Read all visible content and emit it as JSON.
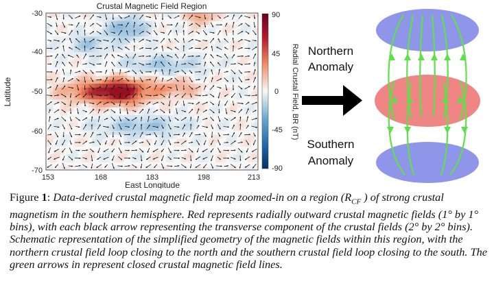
{
  "map": {
    "title": "Crustal Magnetic Field Region",
    "xlabel": "East Longitude",
    "ylabel": "Latitude",
    "xticks": [
      "153",
      "168",
      "183",
      "198",
      "213"
    ],
    "yticks": [
      "-30",
      "-40",
      "-50",
      "-60",
      "-70"
    ],
    "colorbar_label": "Radial Crustal Field, BR (nT)",
    "colorbar_ticks": [
      "90",
      "45",
      "0",
      "-45",
      "-90"
    ],
    "colormap": {
      "positive": "#a50f26",
      "zero": "#f6f6f6",
      "negative": "#2b5fa8"
    }
  },
  "schematic": {
    "northern_label_line1": "Northern",
    "northern_label_line2": "Anomaly",
    "southern_label_line1": "Southern",
    "southern_label_line2": "Anomaly",
    "colors": {
      "blue_ellipse": "#8f96ea",
      "red_ellipse": "#ef8585",
      "field_lines": "#5fe04a",
      "arrow": "#000000"
    }
  },
  "caption": {
    "figure_label": "Figure ",
    "figure_number": "1",
    "separator": ": ",
    "text_a": "Data-derived crustal magnetic field map zoomed-in on a region (R",
    "text_sub": "CF",
    "text_b": " ) of strong crustal magnetism in the southern hemisphere. Red represents radially outward crustal magnetic fields (1° by 1° bins), with each black arrow representing the transverse component of the crustal fields (2° by 2° bins). Schematic representation of the simplified geometry of the magnetic fields within this region, with the northern crustal field loop closing to the north and the southern crustal field loop closing to the south. The green arrows in represent closed crustal magnetic field lines."
  }
}
